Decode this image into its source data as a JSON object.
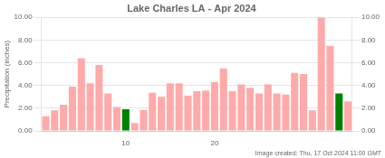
{
  "chart_data": {
    "type": "bar",
    "title": "Lake Charles LA - Apr 2024",
    "ylabel": "Precipitation (inches)",
    "annotations": [
      "Image created: Thu, 17 Oct 2024 11:00 GMT"
    ],
    "categories": [
      null,
      null,
      null,
      null,
      null,
      null,
      null,
      null,
      null,
      "10",
      null,
      null,
      null,
      null,
      null,
      null,
      null,
      null,
      null,
      "20",
      null,
      null,
      null,
      null,
      null,
      null,
      null,
      null,
      null,
      null,
      null,
      null,
      null,
      null,
      null
    ],
    "values": [
      1.3,
      1.8,
      2.3,
      3.9,
      6.4,
      4.2,
      5.8,
      3.3,
      2.1,
      1.9,
      0.7,
      1.85,
      3.35,
      3.0,
      4.2,
      4.2,
      3.1,
      3.5,
      3.55,
      4.3,
      5.5,
      3.5,
      4.1,
      3.8,
      3.3,
      4.1,
      3.3,
      3.2,
      5.1,
      5.0,
      1.8,
      10.0,
      7.5,
      3.3,
      2.6
    ],
    "colors": [
      "#ffaaaa",
      "#ffaaaa",
      "#ffaaaa",
      "#ffaaaa",
      "#ffaaaa",
      "#ffaaaa",
      "#ffaaaa",
      "#ffaaaa",
      "#ffaaaa",
      "#008000",
      "#ffaaaa",
      "#ffaaaa",
      "#ffaaaa",
      "#ffaaaa",
      "#ffaaaa",
      "#ffaaaa",
      "#ffaaaa",
      "#ffaaaa",
      "#ffaaaa",
      "#ffaaaa",
      "#ffaaaa",
      "#ffaaaa",
      "#ffaaaa",
      "#ffaaaa",
      "#ffaaaa",
      "#ffaaaa",
      "#ffaaaa",
      "#ffaaaa",
      "#ffaaaa",
      "#ffaaaa",
      "#ffaaaa",
      "#ffaaaa",
      "#ffaaaa",
      "#008000",
      "#ffaaaa"
    ],
    "ylim": [
      0,
      10.0
    ],
    "yticks": [
      {
        "value": 0.0,
        "label": "0.00"
      },
      {
        "value": 2.0,
        "label": "2.00"
      },
      {
        "value": 4.0,
        "label": "4.00"
      },
      {
        "value": 6.0,
        "label": "6.00"
      },
      {
        "value": 8.0,
        "label": "8.00"
      },
      {
        "value": 10.0,
        "label": "10.00"
      }
    ],
    "y2lim": [
      0,
      10.0
    ],
    "y2ticks": [
      {
        "value": 0.0,
        "label": "0.00"
      },
      {
        "value": 2.0,
        "label": "2.00"
      },
      {
        "value": 4.0,
        "label": "4.00"
      },
      {
        "value": 6.0,
        "label": "6.00"
      },
      {
        "value": 8.0,
        "label": "8.00"
      },
      {
        "value": 10.0,
        "label": "10.00"
      }
    ],
    "grid": true
  }
}
